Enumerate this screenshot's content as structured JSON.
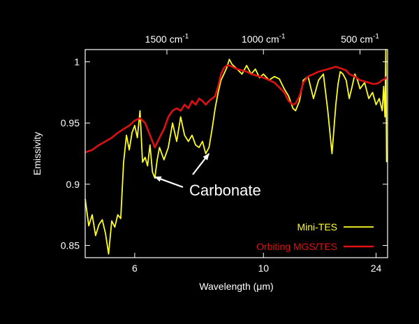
{
  "chart_data": {
    "type": "line",
    "xlabel": "Wavelength (μm)",
    "ylabel": "Emissivity",
    "x_scale": "reciprocal",
    "xlim": [
      5.2,
      28
    ],
    "ylim": [
      0.84,
      1.01
    ],
    "x_ticks": [
      {
        "value": 6,
        "label": "6"
      },
      {
        "value": 10,
        "label": "10"
      },
      {
        "value": 24,
        "label": "24"
      }
    ],
    "y_ticks": [
      {
        "value": 0.85,
        "label": "0.85"
      },
      {
        "value": 0.9,
        "label": "0.9"
      },
      {
        "value": 0.95,
        "label": "0.95"
      },
      {
        "value": 1,
        "label": "1"
      }
    ],
    "top_axis": {
      "unit": "cm",
      "exponent": "-1",
      "ticks": [
        {
          "value": 6.6667,
          "label": "1500"
        },
        {
          "value": 10,
          "label": "1000"
        },
        {
          "value": 20,
          "label": "500"
        }
      ]
    },
    "grid": false,
    "legend_position": "bottom-right",
    "annotation": {
      "text": "Carbonate",
      "arrow_targets": [
        {
          "x": 6.4,
          "y": 0.906
        },
        {
          "x": 7.8,
          "y": 0.925
        }
      ]
    },
    "series": [
      {
        "name": "Mini-TES",
        "color": "#ffff22",
        "x": [
          5.2,
          5.25,
          5.3,
          5.35,
          5.4,
          5.45,
          5.5,
          5.55,
          5.6,
          5.65,
          5.7,
          5.75,
          5.8,
          5.85,
          5.9,
          5.95,
          6.0,
          6.05,
          6.1,
          6.15,
          6.2,
          6.25,
          6.3,
          6.35,
          6.4,
          6.45,
          6.5,
          6.6,
          6.7,
          6.8,
          6.9,
          7.0,
          7.1,
          7.2,
          7.3,
          7.4,
          7.5,
          7.6,
          7.7,
          7.8,
          7.9,
          8.0,
          8.1,
          8.2,
          8.3,
          8.4,
          8.5,
          8.6,
          8.7,
          8.8,
          9.0,
          9.2,
          9.4,
          9.6,
          9.8,
          10.0,
          10.3,
          10.6,
          10.9,
          11.2,
          11.5,
          11.8,
          12.0,
          12.3,
          12.6,
          13.0,
          13.5,
          14.0,
          14.5,
          15.0,
          15.5,
          16.0,
          16.3,
          16.6,
          17.0,
          17.5,
          18.0,
          18.5,
          19.0,
          19.5,
          20.0,
          21.0,
          22.0,
          23.0,
          24.0,
          25.0,
          26.0,
          26.5,
          27.0,
          27.3,
          27.6
        ],
        "y": [
          0.888,
          0.866,
          0.875,
          0.858,
          0.867,
          0.871,
          0.86,
          0.843,
          0.87,
          0.865,
          0.875,
          0.872,
          0.918,
          0.94,
          0.928,
          0.942,
          0.948,
          0.938,
          0.96,
          0.918,
          0.922,
          0.915,
          0.932,
          0.91,
          0.905,
          0.92,
          0.93,
          0.92,
          0.93,
          0.95,
          0.935,
          0.955,
          0.94,
          0.935,
          0.94,
          0.932,
          0.93,
          0.935,
          0.925,
          0.93,
          0.945,
          0.962,
          0.975,
          0.985,
          0.99,
          0.995,
          1.002,
          0.998,
          0.996,
          0.994,
          0.99,
          0.997,
          0.99,
          0.994,
          0.987,
          0.99,
          0.985,
          0.988,
          0.986,
          0.978,
          0.972,
          0.962,
          0.96,
          0.968,
          0.985,
          0.988,
          0.97,
          0.985,
          0.99,
          0.96,
          0.925,
          0.965,
          0.982,
          0.992,
          0.99,
          0.985,
          0.97,
          0.98,
          0.99,
          0.985,
          0.978,
          0.983,
          0.97,
          0.975,
          0.965,
          0.97,
          0.96,
          0.98,
          0.955,
          1.01,
          0.918
        ]
      },
      {
        "name": "Orbiting MGS/TES",
        "color": "#dd1111",
        "x": [
          5.2,
          5.3,
          5.4,
          5.5,
          5.6,
          5.7,
          5.8,
          5.9,
          6.0,
          6.1,
          6.2,
          6.3,
          6.4,
          6.5,
          6.6,
          6.7,
          6.8,
          6.9,
          7.0,
          7.1,
          7.2,
          7.3,
          7.4,
          7.5,
          7.6,
          7.7,
          7.8,
          7.9,
          8.0,
          8.1,
          8.2,
          8.3,
          8.4,
          8.5,
          8.6,
          8.7,
          8.8,
          9.0,
          9.2,
          9.4,
          9.6,
          9.8,
          10.0,
          10.3,
          10.6,
          10.9,
          11.2,
          11.5,
          11.8,
          12.0,
          12.3,
          12.6,
          13.0,
          13.5,
          14.0,
          14.5,
          15.0,
          15.5,
          16.0,
          16.5,
          17.0,
          17.5,
          18.0,
          19.0,
          20.0,
          21.0,
          22.0,
          23.0,
          24.0,
          25.0,
          26.0,
          27.0,
          27.6
        ],
        "y": [
          0.926,
          0.928,
          0.932,
          0.935,
          0.938,
          0.942,
          0.945,
          0.948,
          0.952,
          0.954,
          0.95,
          0.94,
          0.93,
          0.938,
          0.945,
          0.955,
          0.96,
          0.962,
          0.96,
          0.965,
          0.962,
          0.968,
          0.965,
          0.97,
          0.968,
          0.965,
          0.968,
          0.97,
          0.972,
          0.98,
          0.99,
          0.995,
          0.997,
          0.997,
          0.996,
          0.995,
          0.994,
          0.993,
          0.992,
          0.99,
          0.989,
          0.988,
          0.987,
          0.985,
          0.983,
          0.979,
          0.975,
          0.968,
          0.965,
          0.966,
          0.972,
          0.983,
          0.988,
          0.99,
          0.992,
          0.993,
          0.994,
          0.995,
          0.996,
          0.995,
          0.994,
          0.993,
          0.99,
          0.988,
          0.985,
          0.984,
          0.983,
          0.982,
          0.982,
          0.983,
          0.985,
          0.986,
          0.988
        ]
      }
    ]
  }
}
